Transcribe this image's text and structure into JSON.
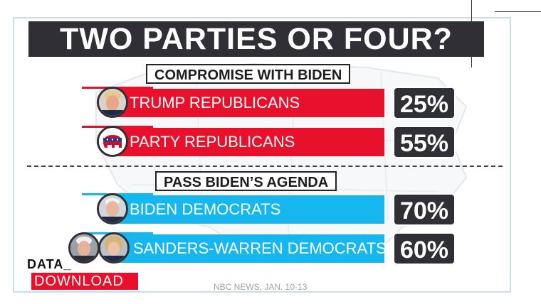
{
  "header": {
    "title": "TWO PARTIES OR FOUR?"
  },
  "sections": [
    {
      "label": "COMPROMISE WITH BIDEN"
    },
    {
      "label": "PASS BIDEN’S AGENDA"
    }
  ],
  "chart_data": {
    "type": "bar",
    "title": "TWO PARTIES OR FOUR?",
    "categories": [
      "TRUMP REPUBLICANS",
      "PARTY REPUBLICANS",
      "BIDEN DEMOCRATS",
      "SANDERS-WARREN DEMOCRATS"
    ],
    "values": [
      25,
      55,
      70,
      60
    ],
    "value_labels": [
      "25%",
      "55%",
      "70%",
      "60%"
    ],
    "groups": [
      "COMPROMISE WITH BIDEN",
      "COMPROMISE WITH BIDEN",
      "PASS BIDEN’S AGENDA",
      "PASS BIDEN’S AGENDA"
    ],
    "colors": [
      "#e8102b",
      "#e8102b",
      "#16b6ef",
      "#16b6ef"
    ],
    "icons": [
      "trump-portrait-icon",
      "gop-elephant-icon",
      "biden-portrait-icon",
      "sanders-warren-portraits-icon"
    ]
  },
  "footer": {
    "data_word": "DATA_",
    "download_word": "DOWNLOAD",
    "source": "NBC NEWS, JAN. 10-13"
  }
}
